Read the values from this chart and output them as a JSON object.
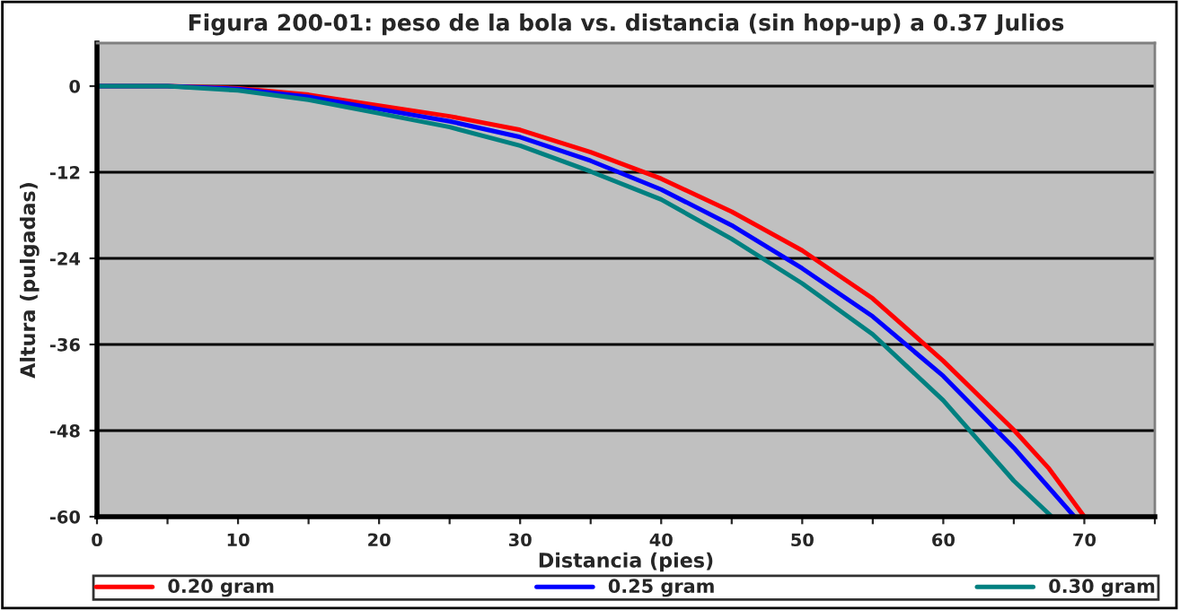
{
  "chart_data": {
    "type": "line",
    "title": "Figura 200-01: peso de la bola vs. distancia (sin hop-up) a 0.37 Julios",
    "xlabel": "Distancia (pies)",
    "ylabel": "Altura (pulgadas)",
    "x": [
      0,
      5,
      10,
      15,
      20,
      25,
      30,
      35,
      40,
      45,
      50,
      55,
      60,
      65,
      67.5,
      70
    ],
    "series": [
      {
        "name": "0.20 gram",
        "color": "#ff0000",
        "values": [
          0,
          0,
          -0.3,
          -1.2,
          -2.7,
          -4.2,
          -6.1,
          -9.2,
          -12.9,
          -17.5,
          -22.9,
          -29.6,
          -38.3,
          -47.9,
          -53.3,
          -60
        ]
      },
      {
        "name": "0.25 gram",
        "color": "#0000ff",
        "x": [
          0,
          5,
          10,
          15,
          20,
          25,
          30,
          35,
          40,
          45,
          50,
          55,
          60,
          65,
          69.3
        ],
        "values": [
          0,
          0,
          -0.4,
          -1.5,
          -3.2,
          -4.9,
          -7.1,
          -10.4,
          -14.4,
          -19.4,
          -25.4,
          -32.1,
          -40.4,
          -50.4,
          -60
        ]
      },
      {
        "name": "0.30 gram",
        "color": "#008080",
        "x": [
          0,
          5,
          10,
          15,
          20,
          25,
          30,
          35,
          40,
          45,
          50,
          55,
          60,
          65,
          67.7
        ],
        "values": [
          0,
          0,
          -0.6,
          -1.9,
          -3.8,
          -5.7,
          -8.3,
          -11.9,
          -15.8,
          -21.3,
          -27.5,
          -34.6,
          -43.8,
          -55,
          -60
        ]
      }
    ],
    "xlim": [
      0,
      75
    ],
    "xticks": [
      0,
      {
        "value": 5,
        "label": null
      },
      10,
      {
        "value": 15,
        "label": null
      },
      20,
      {
        "value": 25,
        "label": null
      },
      30,
      {
        "value": 35,
        "label": null
      },
      40,
      {
        "value": 45,
        "label": null
      },
      50,
      {
        "value": 55,
        "label": null
      },
      60,
      {
        "value": 65,
        "label": null
      },
      70,
      {
        "value": 75,
        "label": null
      }
    ],
    "ylim": [
      -60,
      6
    ],
    "yticks": [
      0,
      -12,
      -24,
      -36,
      -48,
      -60
    ],
    "grid": "y",
    "legend": "bottom",
    "marker": "none",
    "line_style": "solid"
  }
}
